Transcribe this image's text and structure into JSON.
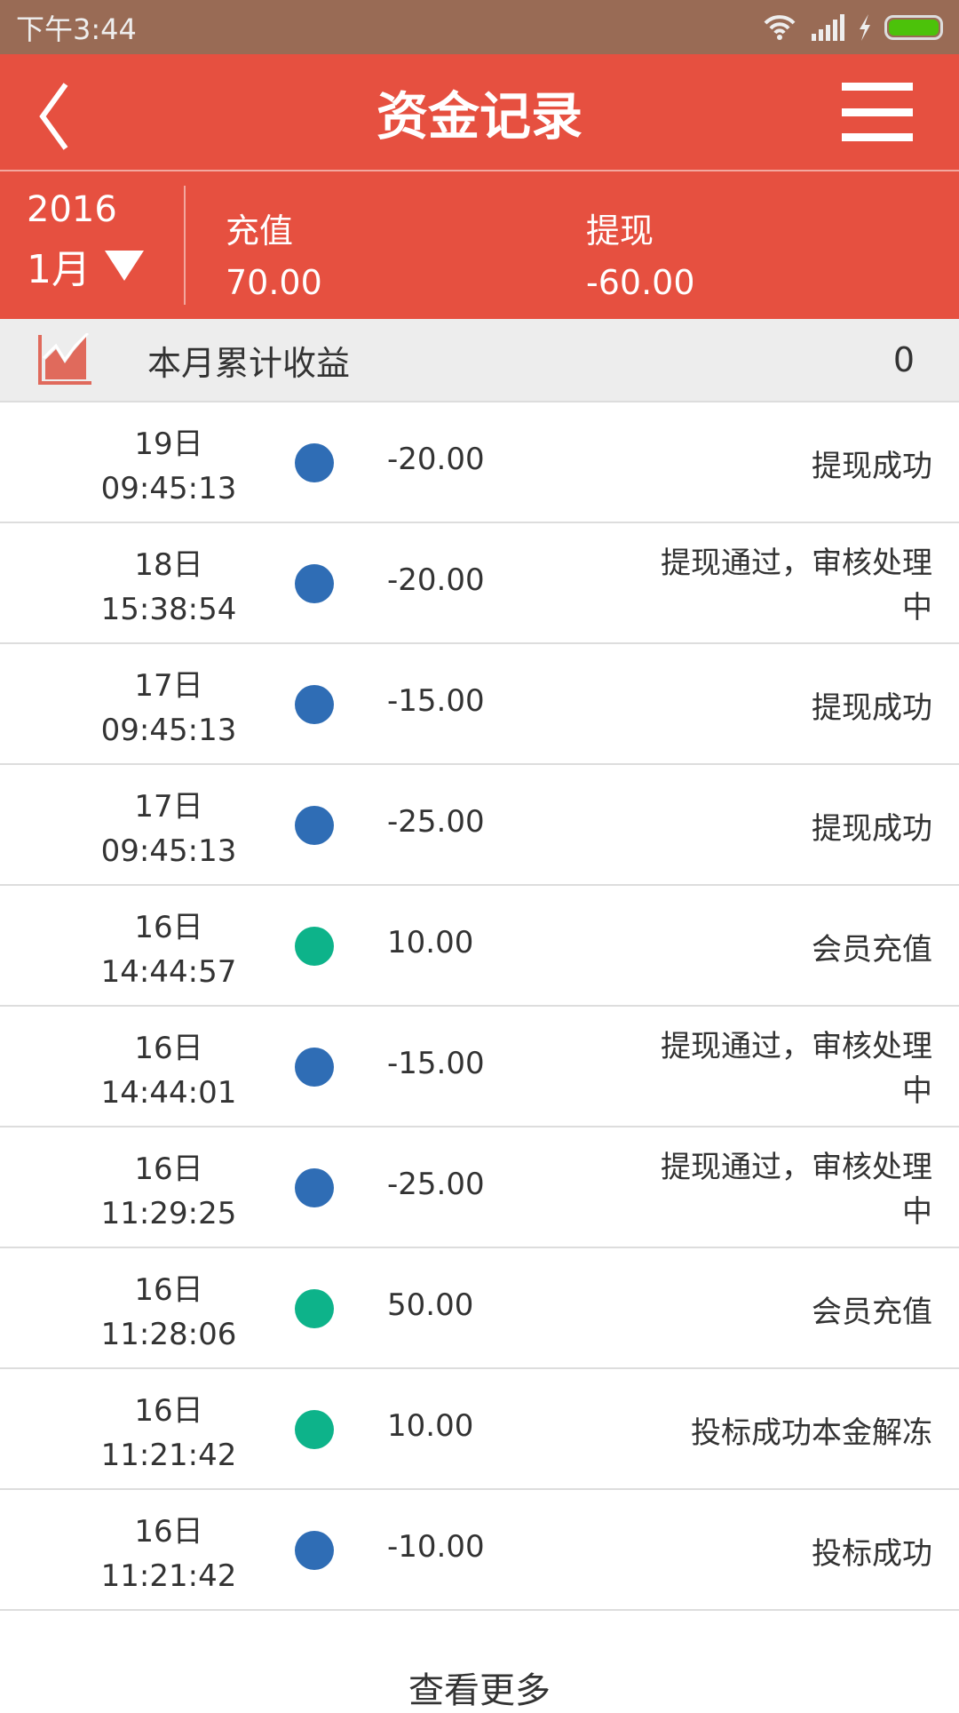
{
  "status_bar": {
    "time": "下午3:44"
  },
  "header": {
    "title": "资金记录"
  },
  "summary": {
    "year": "2016",
    "month": "1月",
    "recharge_label": "充值",
    "recharge_value": "70.00",
    "withdraw_label": "提现",
    "withdraw_value": "-60.00"
  },
  "earnings": {
    "label": "本月累计收益",
    "value": "0"
  },
  "colors": {
    "withdraw": "#2f6db5",
    "deposit": "#0db38a",
    "accent": "#e65040"
  },
  "records": [
    {
      "day": "19日",
      "time": "09:45:13",
      "type": "withdraw",
      "amount": "-20.00",
      "desc": "提现成功"
    },
    {
      "day": "18日",
      "time": "15:38:54",
      "type": "withdraw",
      "amount": "-20.00",
      "desc": "提现通过，审核处理中"
    },
    {
      "day": "17日",
      "time": "09:45:13",
      "type": "withdraw",
      "amount": "-15.00",
      "desc": "提现成功"
    },
    {
      "day": "17日",
      "time": "09:45:13",
      "type": "withdraw",
      "amount": "-25.00",
      "desc": "提现成功"
    },
    {
      "day": "16日",
      "time": "14:44:57",
      "type": "deposit",
      "amount": "10.00",
      "desc": "会员充值"
    },
    {
      "day": "16日",
      "time": "14:44:01",
      "type": "withdraw",
      "amount": "-15.00",
      "desc": "提现通过，审核处理中"
    },
    {
      "day": "16日",
      "time": "11:29:25",
      "type": "withdraw",
      "amount": "-25.00",
      "desc": "提现通过，审核处理中"
    },
    {
      "day": "16日",
      "time": "11:28:06",
      "type": "deposit",
      "amount": "50.00",
      "desc": "会员充值"
    },
    {
      "day": "16日",
      "time": "11:21:42",
      "type": "deposit",
      "amount": "10.00",
      "desc": "投标成功本金解冻"
    },
    {
      "day": "16日",
      "time": "11:21:42",
      "type": "withdraw",
      "amount": "-10.00",
      "desc": "投标成功"
    }
  ],
  "load_more": "查看更多"
}
